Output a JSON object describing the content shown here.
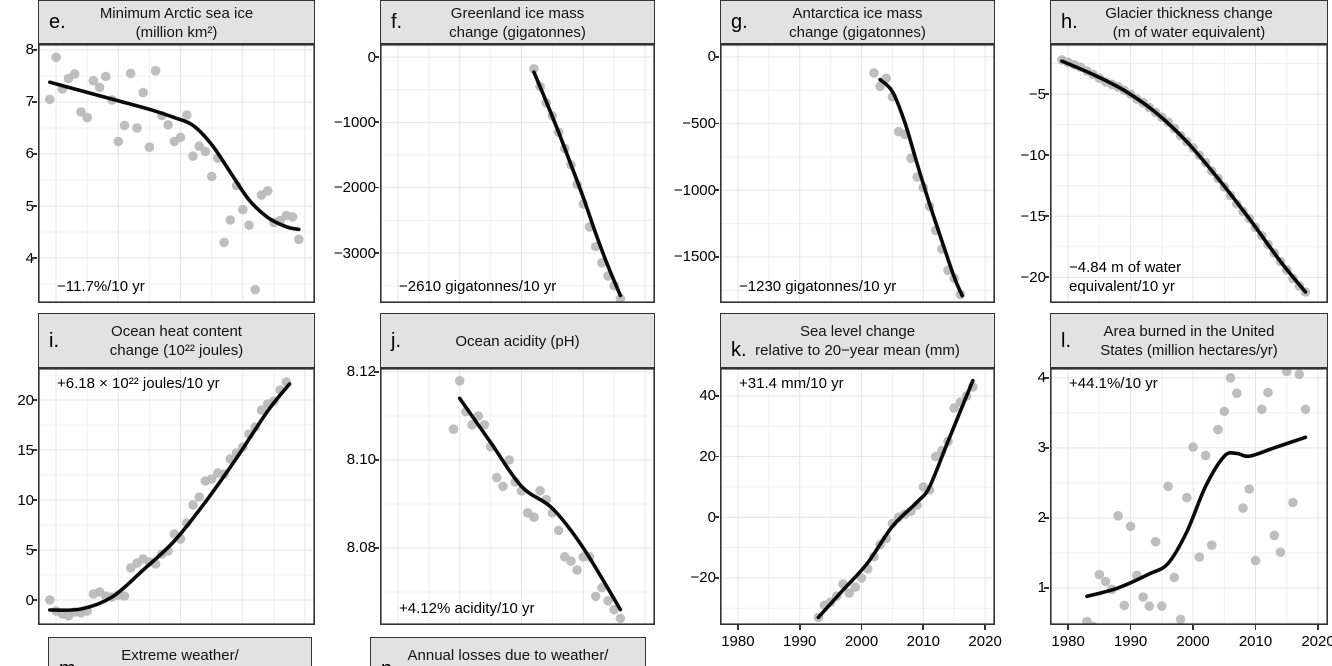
{
  "figure": {
    "name": "Climate change indicators multi-panel figure",
    "colors": {
      "background": "#ffffff",
      "header_fill": "#e2e2e2",
      "panel_border": "#333333",
      "grid_major": "#e5e5e5",
      "grid_minor": "#f0f0f0",
      "point": "#b9b9b9",
      "trend": "#0a0a0a",
      "text": "#000000"
    }
  },
  "chart_data": [
    {
      "type": "scatter",
      "id": "e",
      "panel_label": "e.",
      "col": 1,
      "row": 1,
      "title_lines": [
        "Minimum Arctic sea ice",
        "(million km²)"
      ],
      "annotation_lines": [
        "−11.7%/10 yr"
      ],
      "annotation_pos": "bottom-left",
      "xlim": [
        1977.1,
        2021.6
      ],
      "ylim": [
        3.135,
        8.115
      ],
      "yticks": [
        4,
        5,
        6,
        7,
        8
      ],
      "ytick_labels": [
        "4",
        "5",
        "6",
        "7",
        "8"
      ],
      "xticks": [],
      "xtick_labels": [],
      "x": [
        1979,
        1980,
        1981,
        1982,
        1983,
        1984,
        1985,
        1986,
        1987,
        1988,
        1989,
        1990,
        1991,
        1992,
        1993,
        1994,
        1995,
        1996,
        1997,
        1998,
        1999,
        2000,
        2001,
        2002,
        2003,
        2004,
        2005,
        2006,
        2007,
        2008,
        2009,
        2010,
        2011,
        2012,
        2013,
        2014,
        2015,
        2016,
        2017,
        2018,
        2019
      ],
      "y": [
        7.05,
        7.86,
        7.25,
        7.45,
        7.54,
        6.81,
        6.7,
        7.41,
        7.28,
        7.49,
        7.04,
        6.24,
        6.55,
        7.55,
        6.5,
        7.18,
        6.13,
        7.6,
        6.74,
        6.56,
        6.24,
        6.32,
        6.75,
        5.96,
        6.15,
        6.05,
        5.57,
        5.92,
        4.3,
        4.73,
        5.39,
        4.93,
        4.63,
        3.39,
        5.21,
        5.29,
        4.68,
        4.72,
        4.82,
        4.79,
        4.36
      ],
      "trend_x": [
        1979,
        1983,
        1987,
        1991,
        1995,
        1999,
        2002,
        2005,
        2008,
        2011,
        2014,
        2017,
        2019
      ],
      "trend_y": [
        7.38,
        7.25,
        7.12,
        6.99,
        6.86,
        6.7,
        6.55,
        6.18,
        5.65,
        5.12,
        4.78,
        4.6,
        4.55
      ]
    },
    {
      "type": "scatter",
      "id": "f",
      "panel_label": "f.",
      "col": 2,
      "row": 1,
      "title_lines": [
        "Greenland ice mass",
        "change (gigatonnes)"
      ],
      "annotation_lines": [
        "−2610 gigatonnes/10 yr"
      ],
      "annotation_pos": "bottom-left",
      "xlim": [
        1977.1,
        2021.6
      ],
      "ylim": [
        -3765,
        200
      ],
      "yticks": [
        0,
        -1000,
        -2000,
        -3000
      ],
      "ytick_labels": [
        "0",
        "−1000",
        "−2000",
        "−3000"
      ],
      "xticks": [],
      "xtick_labels": [],
      "x": [
        2002,
        2003,
        2004,
        2005,
        2006,
        2007,
        2008,
        2009,
        2010,
        2011,
        2012,
        2013,
        2014,
        2015,
        2016
      ],
      "y": [
        -180,
        -450,
        -700,
        -900,
        -1150,
        -1400,
        -1650,
        -1950,
        -2250,
        -2600,
        -2900,
        -3150,
        -3350,
        -3500,
        -3700
      ],
      "trend_x": [
        2002,
        2004,
        2006,
        2008,
        2010,
        2012,
        2014,
        2016
      ],
      "trend_y": [
        -230,
        -680,
        -1150,
        -1650,
        -2150,
        -2700,
        -3200,
        -3650
      ]
    },
    {
      "type": "scatter",
      "id": "g",
      "panel_label": "g.",
      "col": 3,
      "row": 1,
      "title_lines": [
        "Antarctica ice mass",
        "change (gigatonnes)"
      ],
      "annotation_lines": [
        "−1230 gigatonnes/10 yr"
      ],
      "annotation_pos": "bottom-left",
      "xlim": [
        1977.1,
        2021.6
      ],
      "ylim": [
        -1845,
        97
      ],
      "yticks": [
        0,
        -500,
        -1000,
        -1500
      ],
      "ytick_labels": [
        "0",
        "−500",
        "−1000",
        "−1500"
      ],
      "xticks": [],
      "xtick_labels": [],
      "x": [
        2002,
        2003,
        2004,
        2005,
        2006,
        2007,
        2008,
        2009,
        2010,
        2011,
        2012,
        2013,
        2014,
        2015,
        2016
      ],
      "y": [
        -120,
        -220,
        -160,
        -300,
        -560,
        -580,
        -760,
        -900,
        -980,
        -1120,
        -1300,
        -1440,
        -1600,
        -1660,
        -1780
      ],
      "trend_x": [
        2003,
        2005,
        2007,
        2009,
        2011,
        2013,
        2015,
        2016.3
      ],
      "trend_y": [
        -170,
        -260,
        -490,
        -800,
        -1100,
        -1380,
        -1650,
        -1790
      ]
    },
    {
      "type": "scatter",
      "id": "h",
      "panel_label": "h.",
      "col": 4,
      "row": 1,
      "title_lines": [
        "Glacier thickness change",
        "(m of water equivalent)"
      ],
      "annotation_lines": [
        "−4.84 m of water",
        "equivalent/10 yr"
      ],
      "annotation_pos": "bottom-left",
      "xlim": [
        1977.1,
        2021.6
      ],
      "ylim": [
        -22.1,
        -0.9
      ],
      "yticks": [
        -5,
        -10,
        -15,
        -20
      ],
      "ytick_labels": [
        "−5",
        "−10",
        "−15",
        "−20"
      ],
      "xticks": [],
      "xtick_labels": [],
      "x": [
        1979,
        1980,
        1981,
        1982,
        1983,
        1984,
        1985,
        1986,
        1987,
        1988,
        1989,
        1990,
        1991,
        1992,
        1993,
        1994,
        1995,
        1996,
        1997,
        1998,
        1999,
        2000,
        2001,
        2002,
        2003,
        2004,
        2005,
        2006,
        2007,
        2008,
        2009,
        2010,
        2011,
        2012,
        2013,
        2014,
        2015,
        2016,
        2017,
        2018
      ],
      "y": [
        -2.2,
        -2.4,
        -2.6,
        -2.8,
        -3.1,
        -3.4,
        -3.7,
        -4.0,
        -4.2,
        -4.4,
        -4.7,
        -5.0,
        -5.4,
        -5.7,
        -6.1,
        -6.5,
        -6.9,
        -7.3,
        -7.8,
        -8.4,
        -8.9,
        -9.4,
        -10.0,
        -10.6,
        -11.3,
        -11.9,
        -12.6,
        -13.3,
        -14.0,
        -14.6,
        -15.2,
        -15.9,
        -16.6,
        -17.3,
        -18.0,
        -18.7,
        -19.4,
        -20.1,
        -20.7,
        -21.2
      ],
      "trend_x": [
        1979,
        1984,
        1989,
        1994,
        1999,
        2004,
        2009,
        2014,
        2018
      ],
      "trend_y": [
        -2.3,
        -3.4,
        -4.7,
        -6.5,
        -8.9,
        -11.9,
        -15.2,
        -18.7,
        -21.2
      ]
    },
    {
      "type": "scatter",
      "id": "i",
      "panel_label": "i.",
      "col": 1,
      "row": 2,
      "title_lines": [
        "Ocean heat content",
        "change (10²² joules)"
      ],
      "annotation_lines": [
        "+6.18 × 10²² joules/10 yr"
      ],
      "annotation_pos": "top-left",
      "xlim": [
        1977.1,
        2021.6
      ],
      "ylim": [
        -2.5,
        23.2
      ],
      "yticks": [
        0,
        5,
        10,
        15,
        20
      ],
      "ytick_labels": [
        "0",
        "5",
        "10",
        "15",
        "20"
      ],
      "xticks": [],
      "xtick_labels": [],
      "x": [
        1979,
        1980,
        1981,
        1982,
        1983,
        1984,
        1985,
        1986,
        1987,
        1988,
        1989,
        1990,
        1991,
        1992,
        1993,
        1994,
        1995,
        1996,
        1997,
        1998,
        1999,
        2000,
        2001,
        2002,
        2003,
        2004,
        2005,
        2006,
        2007,
        2008,
        2009,
        2010,
        2011,
        2012,
        2013,
        2014,
        2015,
        2016,
        2017
      ],
      "y": [
        0.0,
        -1.1,
        -1.4,
        -1.6,
        -1.2,
        -1.3,
        -1.1,
        0.6,
        0.8,
        0.4,
        0.3,
        0.5,
        0.4,
        3.2,
        3.7,
        4.1,
        3.8,
        3.6,
        4.6,
        4.9,
        6.6,
        6.1,
        7.7,
        9.5,
        10.3,
        11.9,
        12.1,
        12.7,
        12.6,
        14.1,
        14.7,
        15.3,
        16.6,
        17.3,
        19.0,
        19.6,
        19.9,
        21.0,
        21.8
      ],
      "trend_x": [
        1979,
        1984,
        1989,
        1994,
        1999,
        2004,
        2009,
        2014,
        2017.5
      ],
      "trend_y": [
        -1.0,
        -0.9,
        0.3,
        3.0,
        5.9,
        9.8,
        14.2,
        18.9,
        21.6
      ]
    },
    {
      "type": "scatter",
      "id": "j",
      "panel_label": "j.",
      "col": 2,
      "row": 2,
      "title_lines": [
        "Ocean acidity (pH)"
      ],
      "annotation_lines": [
        "+4.12% acidity/10 yr"
      ],
      "annotation_pos": "bottom-left",
      "xlim": [
        1977.1,
        2021.6
      ],
      "ylim": [
        8.0625,
        8.1209
      ],
      "yticks": [
        8.08,
        8.1,
        8.12
      ],
      "ytick_labels": [
        "8.08",
        "8.10",
        "8.12"
      ],
      "xticks": [],
      "xtick_labels": [],
      "x": [
        1989,
        1990,
        1991,
        1992,
        1993,
        1994,
        1995,
        1996,
        1997,
        1998,
        1999,
        2000,
        2001,
        2002,
        2003,
        2004,
        2005,
        2006,
        2007,
        2008,
        2009,
        2010,
        2011,
        2012,
        2013,
        2014,
        2015,
        2016
      ],
      "y": [
        8.107,
        8.118,
        8.111,
        8.108,
        8.11,
        8.108,
        8.103,
        8.096,
        8.094,
        8.1,
        8.095,
        8.093,
        8.088,
        8.087,
        8.093,
        8.091,
        8.088,
        8.084,
        8.078,
        8.077,
        8.075,
        8.078,
        8.078,
        8.069,
        8.071,
        8.068,
        8.066,
        8.064
      ],
      "trend_x": [
        1990,
        1995,
        2000,
        2005,
        2010,
        2016
      ],
      "trend_y": [
        8.114,
        8.104,
        8.094,
        8.089,
        8.08,
        8.066
      ]
    },
    {
      "type": "scatter",
      "id": "k",
      "panel_label": "k.",
      "col": 3,
      "row": 2,
      "letter_low": true,
      "title_lines": [
        "Sea level change",
        "relative to 20−year mean (mm)"
      ],
      "annotation_lines": [
        "+31.4 mm/10 yr"
      ],
      "annotation_pos": "top-left",
      "xlim": [
        1977.1,
        2021.6
      ],
      "ylim": [
        -35.5,
        49.2
      ],
      "yticks": [
        -20,
        0,
        20,
        40
      ],
      "ytick_labels": [
        "−20",
        "0",
        "20",
        "40"
      ],
      "xticks": [
        1980,
        1990,
        2000,
        2010,
        2020
      ],
      "xtick_labels": [
        "1980",
        "1990",
        "2000",
        "2010",
        "2020"
      ],
      "x": [
        1993,
        1994,
        1995,
        1996,
        1997,
        1998,
        1999,
        2000,
        2001,
        2002,
        2003,
        2004,
        2005,
        2006,
        2007,
        2008,
        2009,
        2010,
        2011,
        2012,
        2013,
        2014,
        2015,
        2016,
        2017,
        2018
      ],
      "y": [
        -33,
        -29,
        -28,
        -26,
        -22,
        -25,
        -23,
        -20,
        -17,
        -13,
        -9,
        -7,
        -2,
        0,
        1,
        2,
        4,
        10,
        9,
        20,
        22,
        25,
        36,
        38,
        40,
        43
      ],
      "trend_x": [
        1993,
        1997,
        2001,
        2005,
        2009,
        2011,
        2014,
        2018
      ],
      "trend_y": [
        -33,
        -24,
        -15,
        -3,
        5,
        10,
        25,
        45
      ]
    },
    {
      "type": "scatter",
      "id": "l",
      "panel_label": "l.",
      "col": 4,
      "row": 2,
      "title_lines": [
        "Area burned in the United",
        "States (million hectares/yr)"
      ],
      "annotation_lines": [
        "+44.1%/10 yr"
      ],
      "annotation_pos": "top-left",
      "xlim": [
        1977.1,
        2021.6
      ],
      "ylim": [
        0.47,
        4.14
      ],
      "yticks": [
        1,
        2,
        3,
        4
      ],
      "ytick_labels": [
        "1",
        "2",
        "3",
        "4"
      ],
      "xticks": [
        1980,
        1990,
        2000,
        2010,
        2020
      ],
      "xtick_labels": [
        "1980",
        "1990",
        "2000",
        "2010",
        "2020"
      ],
      "x": [
        1983,
        1984,
        1985,
        1986,
        1987,
        1988,
        1989,
        1990,
        1991,
        1992,
        1993,
        1994,
        1995,
        1996,
        1997,
        1998,
        1999,
        2000,
        2001,
        2002,
        2003,
        2004,
        2005,
        2006,
        2007,
        2008,
        2009,
        2010,
        2011,
        2012,
        2013,
        2014,
        2015,
        2016,
        2017,
        2018
      ],
      "y": [
        0.52,
        0.45,
        1.19,
        1.09,
        0.98,
        2.03,
        0.75,
        1.88,
        1.18,
        0.87,
        0.74,
        1.66,
        0.74,
        2.45,
        1.15,
        0.55,
        2.29,
        3.01,
        1.44,
        2.89,
        1.61,
        3.26,
        3.52,
        4.0,
        3.78,
        2.14,
        2.41,
        1.39,
        3.55,
        3.79,
        1.75,
        1.51,
        4.09,
        2.22,
        4.05,
        3.55
      ],
      "trend_x": [
        1983,
        1988,
        1993,
        1996,
        1999,
        2002,
        2005,
        2007,
        2009,
        2013,
        2018
      ],
      "trend_y": [
        0.88,
        1.0,
        1.2,
        1.35,
        1.8,
        2.45,
        2.88,
        2.92,
        2.88,
        3.0,
        3.15
      ]
    }
  ],
  "partial_panels": [
    {
      "id": "m",
      "panel_label": "m.",
      "title_lines": [
        "Extreme weather/"
      ]
    },
    {
      "id": "n",
      "panel_label": "n.",
      "title_lines": [
        "Annual losses due to weather/"
      ]
    }
  ]
}
